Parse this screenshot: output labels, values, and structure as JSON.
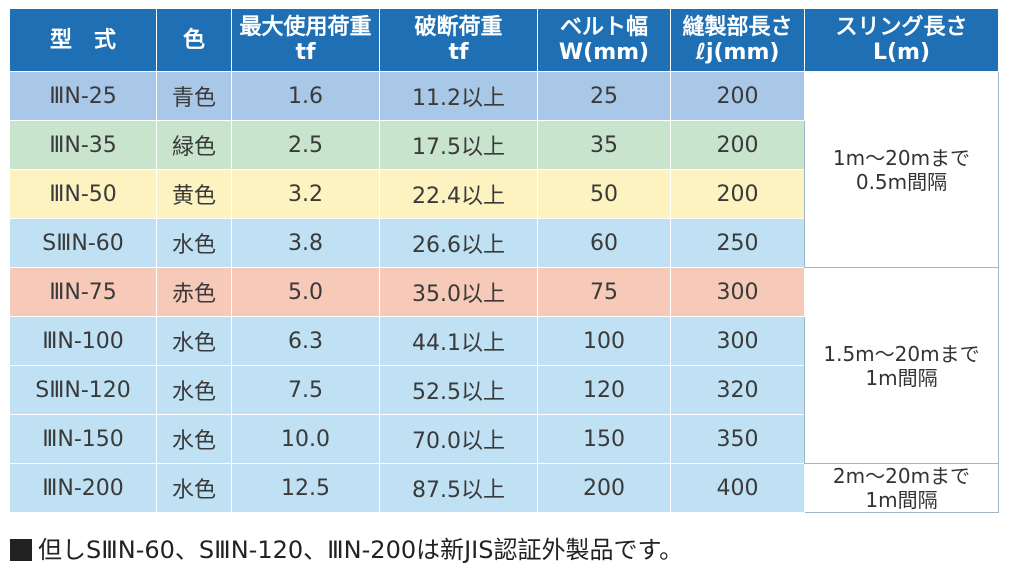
{
  "header": {
    "model": "型　式",
    "color": "色",
    "load_title": "最大使用荷重",
    "load_unit": "tf",
    "break_title": "破断荷重",
    "break_unit": "tf",
    "width_title": "ベルト幅",
    "width_unit": "W(mm)",
    "sewn_title": "縫製部長さ",
    "sewn_unit": "ℓj(mm)",
    "sling_title": "スリング長さ",
    "sling_unit": "L(m)"
  },
  "rows": [
    {
      "model": "ⅢN-25",
      "color": "青色",
      "load": "1.6",
      "break": "11.2以上",
      "width": "25",
      "sewn": "200"
    },
    {
      "model": "ⅢN-35",
      "color": "緑色",
      "load": "2.5",
      "break": "17.5以上",
      "width": "35",
      "sewn": "200"
    },
    {
      "model": "ⅢN-50",
      "color": "黄色",
      "load": "3.2",
      "break": "22.4以上",
      "width": "50",
      "sewn": "200"
    },
    {
      "model": "SⅢN-60",
      "color": "水色",
      "load": "3.8",
      "break": "26.6以上",
      "width": "60",
      "sewn": "250"
    },
    {
      "model": "ⅢN-75",
      "color": "赤色",
      "load": "5.0",
      "break": "35.0以上",
      "width": "75",
      "sewn": "300"
    },
    {
      "model": "ⅢN-100",
      "color": "水色",
      "load": "6.3",
      "break": "44.1以上",
      "width": "100",
      "sewn": "300"
    },
    {
      "model": "SⅢN-120",
      "color": "水色",
      "load": "7.5",
      "break": "52.5以上",
      "width": "120",
      "sewn": "320"
    },
    {
      "model": "ⅢN-150",
      "color": "水色",
      "load": "10.0",
      "break": "70.0以上",
      "width": "150",
      "sewn": "350"
    },
    {
      "model": "ⅢN-200",
      "color": "水色",
      "load": "12.5",
      "break": "87.5以上",
      "width": "200",
      "sewn": "400"
    }
  ],
  "ranges": [
    {
      "line1": "1m～20mまで",
      "line2": "0.5m間隔"
    },
    {
      "line1": "1.5m～20mまで",
      "line2": "1m間隔"
    },
    {
      "line1": "2m～20mまで",
      "line2": "1m間隔"
    }
  ],
  "note": "但しSⅢN-60、SⅢN-120、ⅢN-200は新JIS認証外製品です。",
  "colors": {
    "header": "#1e6fb3",
    "blue_row": "#a9c7e7",
    "green_row": "#c8e4cc",
    "yellow_row": "#fcf3c1",
    "aqua_row": "#bfe1f3",
    "red_row": "#f6c9b8"
  }
}
